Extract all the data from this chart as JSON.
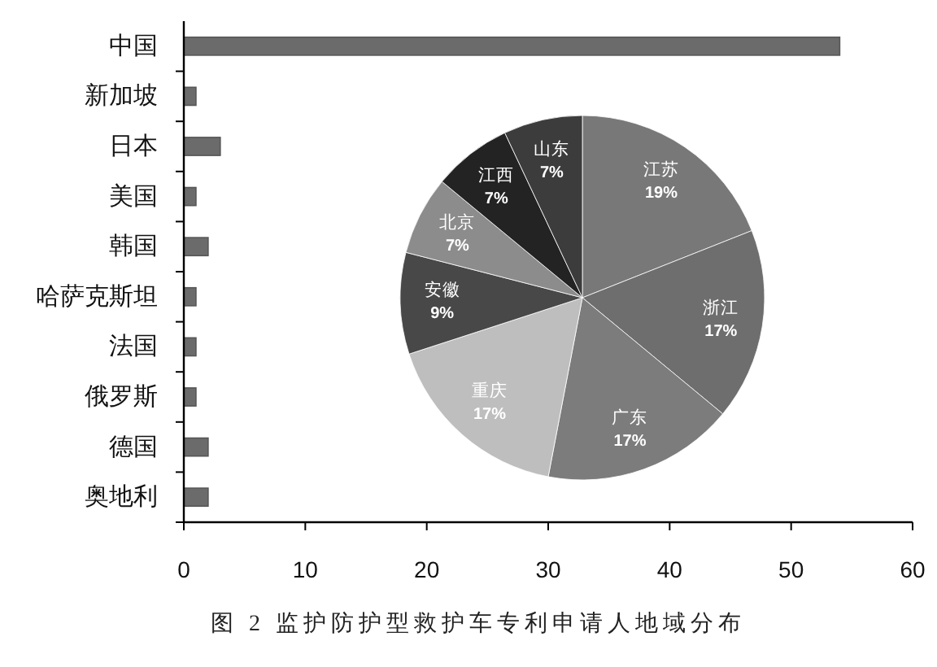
{
  "chart_data": [
    {
      "type": "bar",
      "orientation": "horizontal",
      "categories": [
        "中国",
        "新加坡",
        "日本",
        "美国",
        "韩国",
        "哈萨克斯坦",
        "法国",
        "俄罗斯",
        "德国",
        "奥地利"
      ],
      "values": [
        54,
        1,
        3,
        1,
        2,
        1,
        1,
        1,
        2,
        2
      ],
      "color": "#6b6b6b",
      "xlim": [
        0,
        60
      ],
      "xticks": [
        0,
        10,
        20,
        30,
        40,
        50,
        60
      ],
      "annotations": [
        "图 2 监护防护型救护车专利申请人地域分布"
      ]
    },
    {
      "type": "pie",
      "categories": [
        "江苏",
        "浙江",
        "广东",
        "重庆",
        "安徽",
        "北京",
        "江西",
        "山东"
      ],
      "values": [
        19,
        17,
        17,
        17,
        9,
        7,
        7,
        7
      ],
      "value_labels": [
        "19%",
        "17%",
        "17%",
        "17%",
        "9%",
        "7%",
        "7%",
        "7%"
      ],
      "colors": [
        "#787878",
        "#6e6e6e",
        "#7c7c7c",
        "#bebebe",
        "#484848",
        "#8c8c8c",
        "#232323",
        "#3c3c3c"
      ]
    }
  ]
}
